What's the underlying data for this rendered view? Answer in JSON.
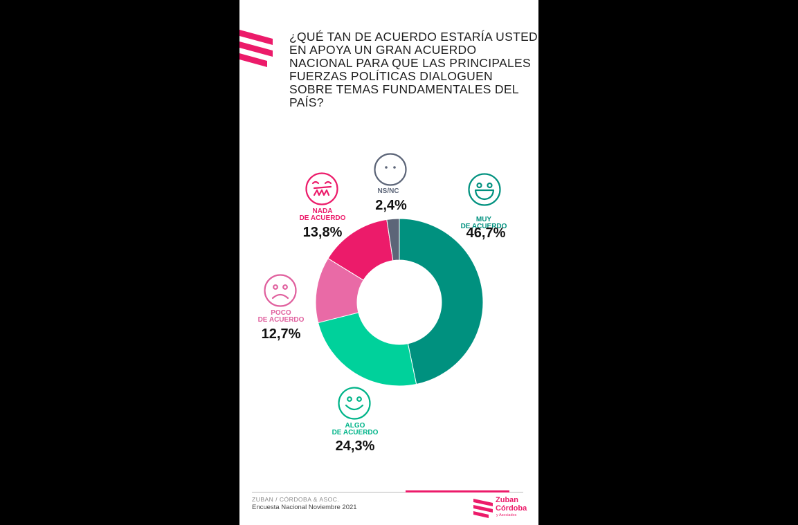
{
  "question": "¿QUÉ TAN DE ACUERDO ESTARÍA USTED EN APOYA UN GRAN ACUERDO NACIONAL PARA QUE LAS PRINCIPALES FUERZAS POLÍTICAS DIALOGUEN SOBRE TEMAS FUNDAMENTALES DEL PAÍS?",
  "chart_data": {
    "type": "pie",
    "donut": true,
    "title": "¿QUÉ TAN DE ACUERDO ESTARÍA USTED EN APOYA UN GRAN ACUERDO NACIONAL PARA QUE LAS PRINCIPALES FUERZAS POLÍTICAS DIALOGUEN SOBRE TEMAS FUNDAMENTALES DEL PAÍS?",
    "slices": [
      {
        "key": "muy",
        "label_lines": [
          "MUY",
          "DE ACUERDO"
        ],
        "value": 46.7,
        "value_text": "46,7%",
        "color": "#00917f",
        "label_color": "#00917f",
        "icon": "big-smile-face-icon"
      },
      {
        "key": "algo",
        "label_lines": [
          "ALGO",
          "DE ACUERDO"
        ],
        "value": 24.3,
        "value_text": "24,3%",
        "color": "#00d19b",
        "label_color": "#00b489",
        "icon": "smile-face-icon"
      },
      {
        "key": "poco",
        "label_lines": [
          "POCO",
          "DE ACUERDO"
        ],
        "value": 12.7,
        "value_text": "12,7%",
        "color": "#e96aa6",
        "label_color": "#e0609e",
        "icon": "sad-face-icon"
      },
      {
        "key": "nada",
        "label_lines": [
          "NADA",
          "DE ACUERDO"
        ],
        "value": 13.8,
        "value_text": "13,8%",
        "color": "#ec1b6a",
        "label_color": "#ec1b6a",
        "icon": "angry-face-icon"
      },
      {
        "key": "nsnc",
        "label_lines": [
          "NS/NC"
        ],
        "value": 2.4,
        "value_text": "2,4%",
        "color": "#5c6578",
        "label_color": "#5c6578",
        "icon": "neutral-face-icon"
      }
    ]
  },
  "footer": {
    "firm": "ZUBAN / CÓRDOBA & ASOC.",
    "survey": "Encuesta Nacional Noviembre 2021"
  },
  "brand": {
    "name_line1": "Zuban",
    "name_line2": "Córdoba",
    "name_line3": "y Asociados",
    "color": "#ec1b6a"
  }
}
